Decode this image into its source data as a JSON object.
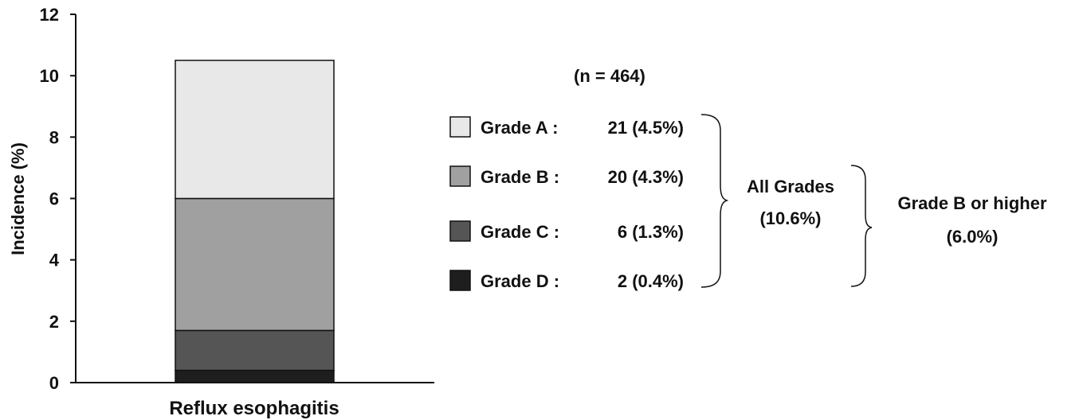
{
  "chart_data": {
    "type": "bar",
    "stacked": true,
    "title": "",
    "xlabel": "",
    "ylabel": "Incidence (%)",
    "ylim": [
      0,
      12
    ],
    "yticks": [
      "0",
      "2",
      "4",
      "6",
      "8",
      "10",
      "12"
    ],
    "categories": [
      "Reflux esophagitis"
    ],
    "series": [
      {
        "name": "Grade D",
        "values": [
          0.4
        ],
        "color": "#1e1e1e"
      },
      {
        "name": "Grade C",
        "values": [
          1.3
        ],
        "color": "#555555"
      },
      {
        "name": "Grade B",
        "values": [
          4.3
        ],
        "color": "#a0a0a0"
      },
      {
        "name": "Grade A",
        "values": [
          4.5
        ],
        "color": "#e8e8e8"
      }
    ],
    "grid": false,
    "legend": {
      "position": "right",
      "header": "(n = 464)",
      "entries": [
        {
          "label": "Grade A :",
          "value": "21 (4.5%)",
          "color": "#e8e8e8"
        },
        {
          "label": "Grade B :",
          "value": "20 (4.3%)",
          "color": "#a0a0a0"
        },
        {
          "label": "Grade C :",
          "value": "6 (1.3%)",
          "color": "#555555"
        },
        {
          "label": "Grade D :",
          "value": "2 (0.4%)",
          "color": "#1e1e1e"
        }
      ]
    },
    "annotations": {
      "all_grades": {
        "line1": "All Grades",
        "line2": "(10.6%)"
      },
      "grade_b_or_higher": {
        "line1": "Grade B or higher",
        "line2": "(6.0%)"
      }
    }
  }
}
